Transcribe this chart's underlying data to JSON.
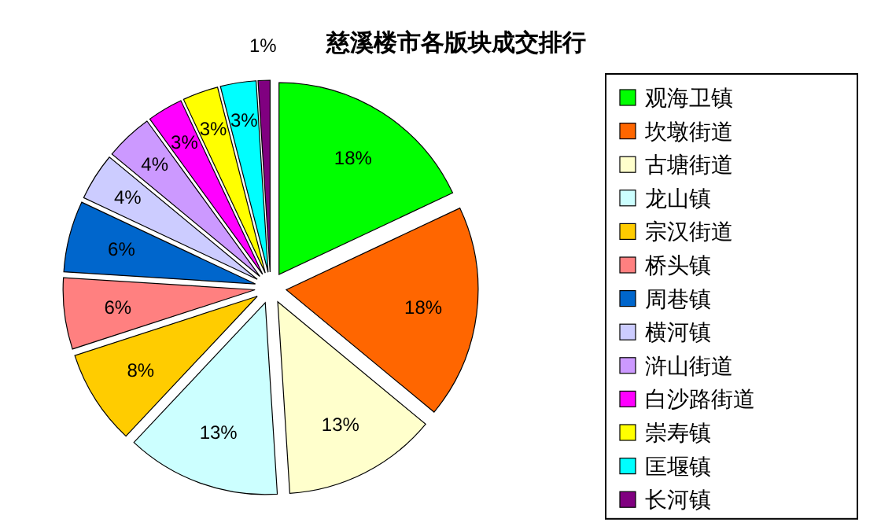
{
  "chart_data": {
    "type": "pie",
    "title": "慈溪楼市各版块成交排行",
    "categories": [
      "观海卫镇",
      "坎墩街道",
      "古塘街道",
      "龙山镇",
      "宗汉街道",
      "桥头镇",
      "周巷镇",
      "横河镇",
      "浒山街道",
      "白沙路街道",
      "崇寿镇",
      "匡堰镇",
      "长河镇"
    ],
    "values": [
      18,
      18,
      13,
      13,
      8,
      6,
      6,
      4,
      4,
      3,
      3,
      3,
      1
    ],
    "colors": [
      "#00ff00",
      "#ff6600",
      "#ffffcc",
      "#ccffff",
      "#ffcc00",
      "#ff8080",
      "#0066cc",
      "#ccccff",
      "#cc99ff",
      "#ff00ff",
      "#ffff00",
      "#00ffff",
      "#800080"
    ],
    "value_labels": [
      "18%",
      "18%",
      "13%",
      "13%",
      "8%",
      "6%",
      "6%",
      "4%",
      "4%",
      "3%",
      "3%",
      "3%",
      "1%"
    ],
    "legend": "right"
  }
}
